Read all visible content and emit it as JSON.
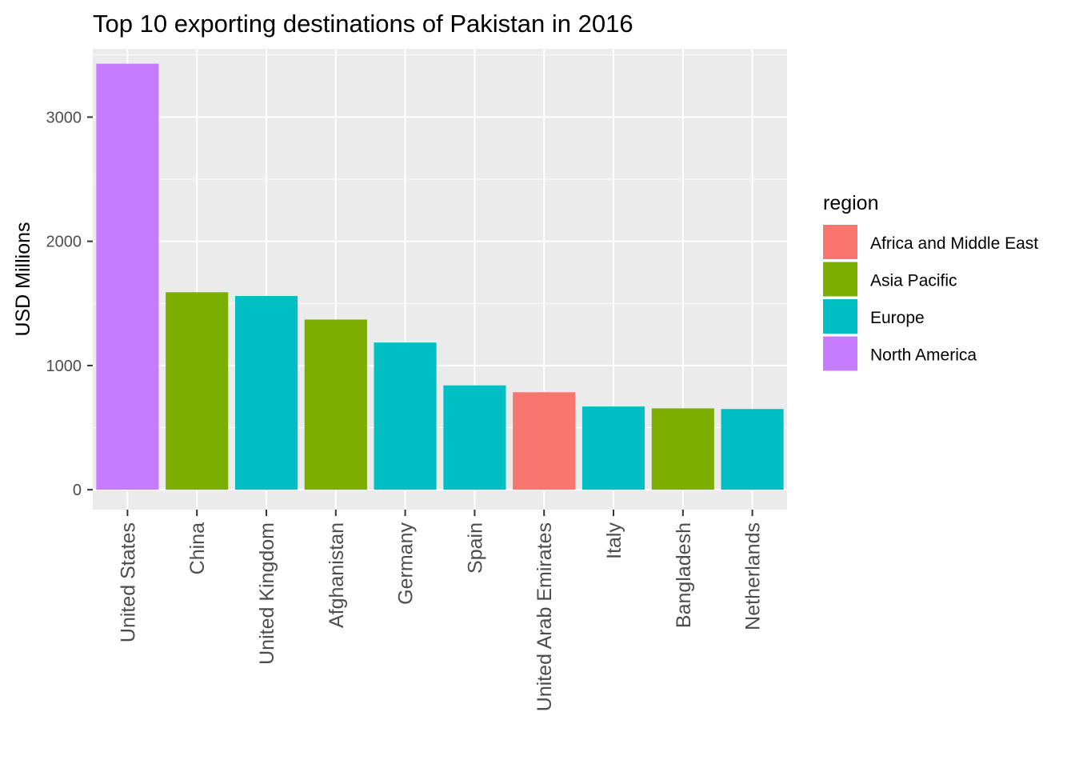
{
  "chart_data": {
    "type": "bar",
    "title": "Top 10 exporting destinations of Pakistan in 2016",
    "xlabel": "",
    "ylabel": "USD Millions",
    "ylim": [
      -160,
      3550
    ],
    "yticks": [
      0,
      1000,
      2000,
      3000
    ],
    "grid": true,
    "legend_position": "right",
    "legend_title": "region",
    "regions": [
      {
        "name": "Africa and Middle East",
        "color": "#F8766D"
      },
      {
        "name": "Asia Pacific",
        "color": "#7CAE00"
      },
      {
        "name": "Europe",
        "color": "#00BFC4"
      },
      {
        "name": "North America",
        "color": "#C77CFF"
      }
    ],
    "categories": [
      "United States",
      "China",
      "United Kingdom",
      "Afghanistan",
      "Germany",
      "Spain",
      "United Arab Emirates",
      "Italy",
      "Bangladesh",
      "Netherlands"
    ],
    "values": [
      3430,
      1590,
      1560,
      1370,
      1185,
      840,
      785,
      670,
      655,
      650
    ],
    "bar_regions": [
      "North America",
      "Asia Pacific",
      "Europe",
      "Asia Pacific",
      "Europe",
      "Europe",
      "Africa and Middle East",
      "Europe",
      "Asia Pacific",
      "Europe"
    ]
  }
}
